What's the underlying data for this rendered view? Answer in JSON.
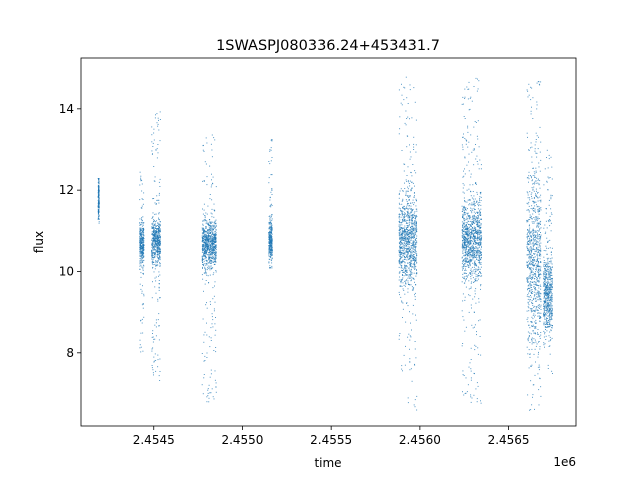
{
  "chart_data": {
    "type": "scatter",
    "title": "1SWASPJ080336.24+453431.7",
    "xlabel": "time",
    "ylabel": "flux",
    "x_offset_label": "1e6",
    "xlim": [
      2454090,
      2456880
    ],
    "ylim": [
      6.2,
      15.25
    ],
    "x_ticks": [
      2454500,
      2455000,
      2455500,
      2456000,
      2456500
    ],
    "x_tick_labels": [
      "2.4545",
      "2.4550",
      "2.4555",
      "2.4560",
      "2.4565"
    ],
    "y_ticks": [
      8,
      10,
      12,
      14
    ],
    "y_tick_labels": [
      "8",
      "10",
      "12",
      "14"
    ],
    "grid": false,
    "marker_color": "#1f77b4",
    "clusters": [
      {
        "x": 2454187,
        "x_spread": 3,
        "y_center": 11.75,
        "y_core": 0.25,
        "y_tail_low": 11.2,
        "y_tail_high": 12.3
      },
      {
        "x": 2454430,
        "x_spread": 12,
        "y_center": 10.7,
        "y_core": 0.25,
        "y_tail_low": 8.0,
        "y_tail_high": 12.5
      },
      {
        "x": 2454510,
        "x_spread": 25,
        "y_center": 10.75,
        "y_core": 0.3,
        "y_tail_low": 7.3,
        "y_tail_high": 14.2
      },
      {
        "x": 2454810,
        "x_spread": 40,
        "y_center": 10.7,
        "y_core": 0.3,
        "y_tail_low": 6.7,
        "y_tail_high": 13.4
      },
      {
        "x": 2455155,
        "x_spread": 10,
        "y_center": 10.75,
        "y_core": 0.25,
        "y_tail_low": 10.1,
        "y_tail_high": 13.3
      },
      {
        "x": 2455930,
        "x_spread": 50,
        "y_center": 10.75,
        "y_core": 0.55,
        "y_tail_low": 6.6,
        "y_tail_high": 14.8
      },
      {
        "x": 2456290,
        "x_spread": 55,
        "y_center": 10.8,
        "y_core": 0.5,
        "y_tail_low": 6.6,
        "y_tail_high": 14.8
      },
      {
        "x": 2456640,
        "x_spread": 40,
        "y_center": 10.3,
        "y_core": 1.1,
        "y_tail_low": 6.6,
        "y_tail_high": 14.8
      },
      {
        "x": 2456720,
        "x_spread": 25,
        "y_center": 9.4,
        "y_core": 0.5,
        "y_tail_low": 7.5,
        "y_tail_high": 13.0
      }
    ]
  }
}
